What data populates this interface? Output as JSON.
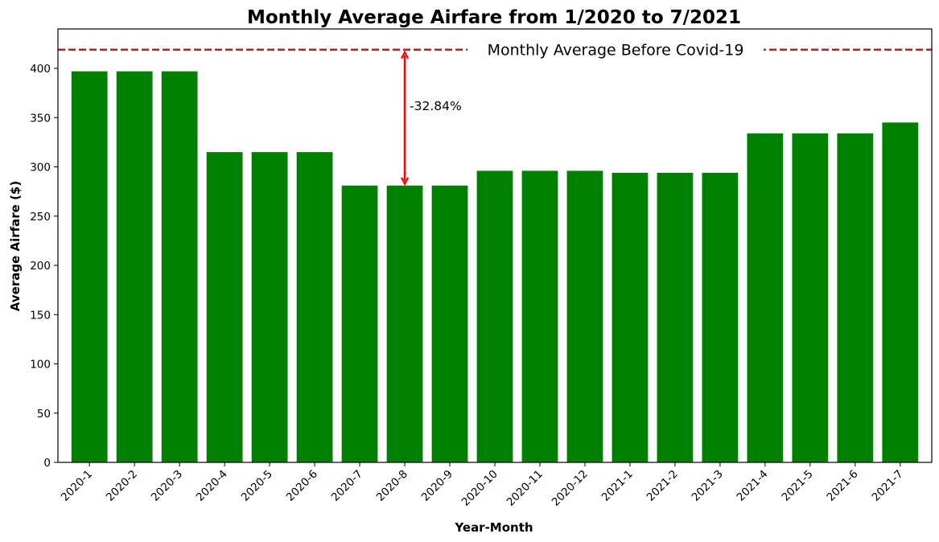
{
  "chart_data": {
    "type": "bar",
    "title": "Monthly Average Airfare from 1/2020 to 7/2021",
    "xlabel": "Year-Month",
    "ylabel": "Average Airfare ($)",
    "ylim": [
      0,
      440
    ],
    "yticks": [
      0,
      50,
      100,
      150,
      200,
      250,
      300,
      350,
      400
    ],
    "categories": [
      "2020-1",
      "2020-2",
      "2020-3",
      "2020-4",
      "2020-5",
      "2020-6",
      "2020-7",
      "2020-8",
      "2020-9",
      "2020-10",
      "2020-11",
      "2020-12",
      "2021-1",
      "2021-2",
      "2021-3",
      "2021-4",
      "2021-5",
      "2021-6",
      "2021-7"
    ],
    "values": [
      397,
      397,
      397,
      315,
      315,
      315,
      281,
      281,
      281,
      296,
      296,
      296,
      294,
      294,
      294,
      334,
      334,
      334,
      345
    ],
    "bar_color": "#008000",
    "grid": false,
    "reference_line": {
      "value": 419,
      "label": "Monthly Average Before Covid-19",
      "color": "#a52a2a",
      "style": "dashed"
    },
    "annotation": {
      "category": "2020-8",
      "from_value": 281,
      "to_value": 419,
      "text": "-32.84%",
      "color": "#ff0000"
    }
  }
}
